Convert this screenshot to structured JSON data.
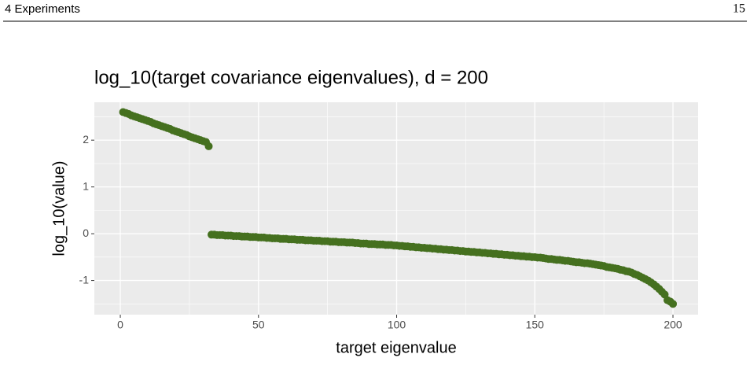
{
  "header": {
    "section": "4 Experiments",
    "page_number": "15"
  },
  "chart_data": {
    "type": "scatter",
    "title": "log_10(target covariance eigenvalues), d = 200",
    "x_label": "target eigenvalue",
    "y_label": "log_10(value)",
    "color": "#45701f",
    "grid": true,
    "xlim": [
      -9.4,
      209.1
    ],
    "ylim": [
      -1.73,
      2.81
    ],
    "xticks": [
      0,
      50,
      100,
      150,
      200
    ],
    "yticks": [
      -1,
      0,
      1,
      2
    ],
    "xminorticks": [
      25,
      75,
      125,
      175
    ],
    "yminorticks": [
      -1.5,
      -0.5,
      0.5,
      1.5,
      2.5
    ],
    "x": [
      1,
      2,
      3,
      4,
      5,
      6,
      7,
      8,
      9,
      10,
      11,
      12,
      13,
      14,
      15,
      16,
      17,
      18,
      19,
      20,
      21,
      22,
      23,
      24,
      25,
      26,
      27,
      28,
      29,
      30,
      31,
      32,
      33,
      34,
      35,
      36,
      37,
      38,
      39,
      40,
      41,
      42,
      43,
      44,
      45,
      46,
      47,
      48,
      49,
      50,
      51,
      52,
      53,
      54,
      55,
      56,
      57,
      58,
      59,
      60,
      61,
      62,
      63,
      64,
      65,
      66,
      67,
      68,
      69,
      70,
      71,
      72,
      73,
      74,
      75,
      76,
      77,
      78,
      79,
      80,
      81,
      82,
      83,
      84,
      85,
      86,
      87,
      88,
      89,
      90,
      91,
      92,
      93,
      94,
      95,
      96,
      97,
      98,
      99,
      100,
      101,
      102,
      103,
      104,
      105,
      106,
      107,
      108,
      109,
      110,
      111,
      112,
      113,
      114,
      115,
      116,
      117,
      118,
      119,
      120,
      121,
      122,
      123,
      124,
      125,
      126,
      127,
      128,
      129,
      130,
      131,
      132,
      133,
      134,
      135,
      136,
      137,
      138,
      139,
      140,
      141,
      142,
      143,
      144,
      145,
      146,
      147,
      148,
      149,
      150,
      151,
      152,
      153,
      154,
      155,
      156,
      157,
      158,
      159,
      160,
      161,
      162,
      163,
      164,
      165,
      166,
      167,
      168,
      169,
      170,
      171,
      172,
      173,
      174,
      175,
      176,
      177,
      178,
      179,
      180,
      181,
      182,
      183,
      184,
      185,
      186,
      187,
      188,
      189,
      190,
      191,
      192,
      193,
      194,
      195,
      196,
      197,
      198,
      199,
      200
    ],
    "values": [
      2.6,
      2.58,
      2.56,
      2.53,
      2.51,
      2.49,
      2.47,
      2.45,
      2.43,
      2.41,
      2.39,
      2.36,
      2.34,
      2.32,
      2.3,
      2.28,
      2.26,
      2.24,
      2.21,
      2.19,
      2.17,
      2.15,
      2.13,
      2.11,
      2.08,
      2.06,
      2.04,
      2.02,
      2.0,
      1.98,
      1.96,
      1.87,
      -0.02,
      -0.02,
      -0.03,
      -0.03,
      -0.03,
      -0.04,
      -0.04,
      -0.04,
      -0.05,
      -0.05,
      -0.05,
      -0.06,
      -0.06,
      -0.06,
      -0.07,
      -0.07,
      -0.07,
      -0.08,
      -0.08,
      -0.08,
      -0.09,
      -0.09,
      -0.1,
      -0.1,
      -0.1,
      -0.11,
      -0.11,
      -0.11,
      -0.12,
      -0.12,
      -0.12,
      -0.13,
      -0.13,
      -0.13,
      -0.14,
      -0.14,
      -0.14,
      -0.15,
      -0.15,
      -0.15,
      -0.16,
      -0.16,
      -0.16,
      -0.17,
      -0.17,
      -0.17,
      -0.18,
      -0.18,
      -0.18,
      -0.19,
      -0.19,
      -0.19,
      -0.2,
      -0.2,
      -0.21,
      -0.21,
      -0.21,
      -0.22,
      -0.22,
      -0.22,
      -0.23,
      -0.23,
      -0.23,
      -0.24,
      -0.24,
      -0.24,
      -0.25,
      -0.25,
      -0.26,
      -0.26,
      -0.27,
      -0.27,
      -0.28,
      -0.28,
      -0.29,
      -0.29,
      -0.3,
      -0.3,
      -0.31,
      -0.31,
      -0.32,
      -0.32,
      -0.33,
      -0.33,
      -0.34,
      -0.34,
      -0.35,
      -0.35,
      -0.36,
      -0.36,
      -0.37,
      -0.37,
      -0.38,
      -0.38,
      -0.39,
      -0.39,
      -0.4,
      -0.4,
      -0.41,
      -0.41,
      -0.42,
      -0.42,
      -0.43,
      -0.43,
      -0.44,
      -0.44,
      -0.45,
      -0.45,
      -0.46,
      -0.46,
      -0.47,
      -0.47,
      -0.48,
      -0.48,
      -0.49,
      -0.49,
      -0.5,
      -0.5,
      -0.51,
      -0.51,
      -0.52,
      -0.53,
      -0.54,
      -0.54,
      -0.55,
      -0.56,
      -0.56,
      -0.57,
      -0.58,
      -0.58,
      -0.59,
      -0.6,
      -0.61,
      -0.61,
      -0.62,
      -0.63,
      -0.63,
      -0.64,
      -0.65,
      -0.66,
      -0.67,
      -0.68,
      -0.69,
      -0.71,
      -0.72,
      -0.73,
      -0.74,
      -0.75,
      -0.77,
      -0.78,
      -0.8,
      -0.81,
      -0.83,
      -0.86,
      -0.88,
      -0.91,
      -0.94,
      -0.97,
      -1.0,
      -1.04,
      -1.08,
      -1.13,
      -1.18,
      -1.24,
      -1.3,
      -1.42,
      -1.45,
      -1.5
    ]
  }
}
